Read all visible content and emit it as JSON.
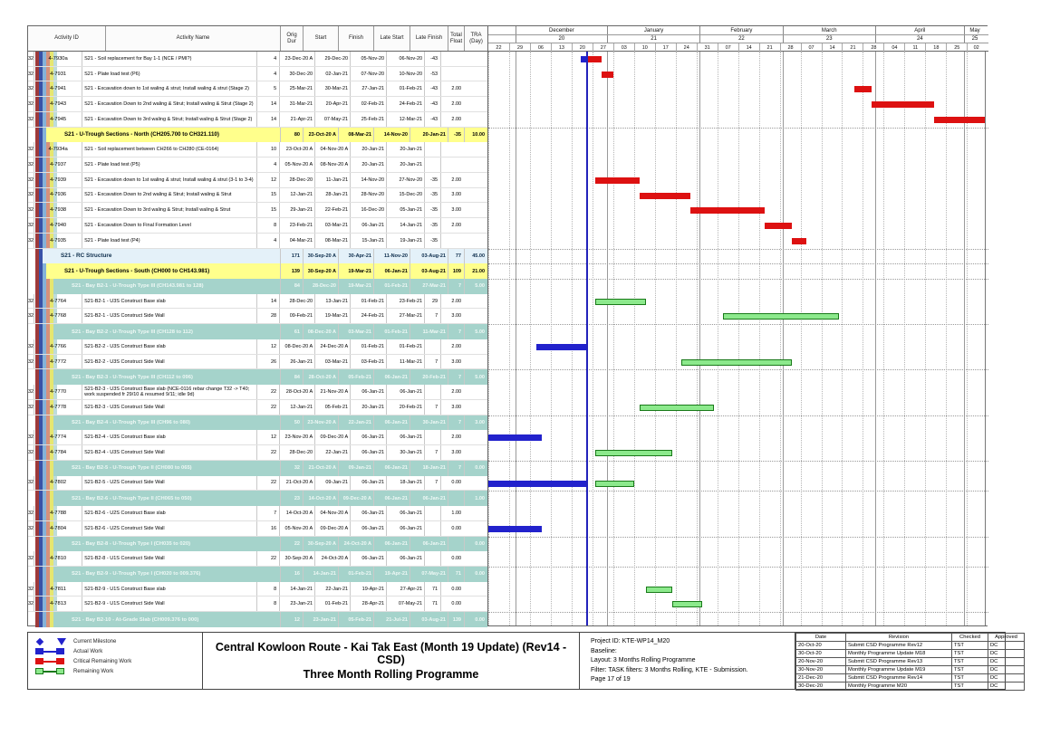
{
  "colors": {
    "actual_bar": "#2222cc",
    "critical_bar": "#dd1111",
    "remaining_fill": "#8ce98c",
    "remaining_border": "#1a7a1a",
    "data_date_line": "#2222bb",
    "yellow_row": "#ffff8c",
    "teal_row": "#a5d3cb",
    "blue_row": "#e4f1f9"
  },
  "header": {
    "columns": [
      "Activity ID",
      "Activity Name",
      "Orig Dur",
      "Start",
      "Finish",
      "Late Start",
      "Late Finish",
      "Total Float",
      "TRA (Day)"
    ]
  },
  "timescale": {
    "chart_start": "2020-11-22",
    "chart_end": "2021-05-08",
    "data_date": "2020-12-25",
    "months": [
      {
        "label": "",
        "num": "",
        "from": "2020-11-22",
        "to": "2020-12-01"
      },
      {
        "label": "December",
        "num": "20",
        "from": "2020-12-01",
        "to": "2021-01-01"
      },
      {
        "label": "January",
        "num": "21",
        "from": "2021-01-01",
        "to": "2021-02-01"
      },
      {
        "label": "February",
        "num": "22",
        "from": "2021-02-01",
        "to": "2021-03-01"
      },
      {
        "label": "March",
        "num": "23",
        "from": "2021-03-01",
        "to": "2021-04-01"
      },
      {
        "label": "April",
        "num": "24",
        "from": "2021-04-01",
        "to": "2021-05-01"
      },
      {
        "label": "May",
        "num": "25",
        "from": "2021-05-01",
        "to": "2021-05-08"
      }
    ],
    "weeks": [
      {
        "label": "22",
        "date": "2020-11-22"
      },
      {
        "label": "29",
        "date": "2020-11-29"
      },
      {
        "label": "06",
        "date": "2020-12-06"
      },
      {
        "label": "13",
        "date": "2020-12-13"
      },
      {
        "label": "20",
        "date": "2020-12-20"
      },
      {
        "label": "27",
        "date": "2020-12-27"
      },
      {
        "label": "03",
        "date": "2021-01-03"
      },
      {
        "label": "10",
        "date": "2021-01-10"
      },
      {
        "label": "17",
        "date": "2021-01-17"
      },
      {
        "label": "24",
        "date": "2021-01-24"
      },
      {
        "label": "31",
        "date": "2021-01-31"
      },
      {
        "label": "07",
        "date": "2021-02-07"
      },
      {
        "label": "14",
        "date": "2021-02-14"
      },
      {
        "label": "21",
        "date": "2021-02-21"
      },
      {
        "label": "28",
        "date": "2021-02-28"
      },
      {
        "label": "07",
        "date": "2021-03-07"
      },
      {
        "label": "14",
        "date": "2021-03-14"
      },
      {
        "label": "21",
        "date": "2021-03-21"
      },
      {
        "label": "28",
        "date": "2021-03-28"
      },
      {
        "label": "04",
        "date": "2021-04-04"
      },
      {
        "label": "11",
        "date": "2021-04-11"
      },
      {
        "label": "18",
        "date": "2021-04-18"
      },
      {
        "label": "25",
        "date": "2021-04-25"
      },
      {
        "label": "02",
        "date": "2021-05-02"
      }
    ]
  },
  "rows": [
    {
      "type": "task",
      "id": "4-7930a",
      "name": "S21 - Soil replacement for Bay 1-1 (NCE / PMI?)",
      "dur": "4",
      "start": "23-Dec-20 A",
      "finish": "29-Dec-20",
      "ls": "05-Nov-20",
      "lf": "06-Nov-20",
      "tf": "-43",
      "tra": "",
      "bars": [
        {
          "t": "actual",
          "f": "2020-12-23",
          "to": "2020-12-25"
        },
        {
          "t": "critical",
          "f": "2020-12-25",
          "to": "2020-12-30"
        }
      ]
    },
    {
      "type": "task",
      "id": "4-7931",
      "name": "S21 - Plate load test (P6)",
      "dur": "4",
      "start": "30-Dec-20",
      "finish": "02-Jan-21",
      "ls": "07-Nov-20",
      "lf": "10-Nov-20",
      "tf": "-53",
      "tra": "",
      "bars": [
        {
          "t": "critical",
          "f": "2020-12-30",
          "to": "2021-01-03"
        }
      ]
    },
    {
      "type": "task",
      "id": "4-7941",
      "name": "S21 - Excavation down to 1st waling & strut; Install waling & strut (Stage 2)",
      "dur": "5",
      "start": "25-Mar-21",
      "finish": "30-Mar-21",
      "ls": "27-Jan-21",
      "lf": "01-Feb-21",
      "tf": "-43",
      "tra": "2.00",
      "bars": [
        {
          "t": "critical",
          "f": "2021-03-25",
          "to": "2021-03-31"
        }
      ]
    },
    {
      "type": "task",
      "id": "4-7943",
      "name": "S21 - Excavation Down to 2nd waling & Strut; Install waling & Strut (Stage 2)",
      "dur": "14",
      "start": "31-Mar-21",
      "finish": "20-Apr-21",
      "ls": "02-Feb-21",
      "lf": "24-Feb-21",
      "tf": "-43",
      "tra": "2.00",
      "bars": [
        {
          "t": "critical",
          "f": "2021-03-31",
          "to": "2021-04-21"
        }
      ]
    },
    {
      "type": "task",
      "id": "4-7945",
      "name": "S21 - Excavation Down to 3rd waling & Strut; Install waling & Strut (Stage 2)",
      "dur": "14",
      "start": "21-Apr-21",
      "finish": "07-May-21",
      "ls": "25-Feb-21",
      "lf": "12-Mar-21",
      "tf": "-43",
      "tra": "2.00",
      "bars": [
        {
          "t": "critical",
          "f": "2021-04-21",
          "to": "2021-05-08"
        }
      ]
    },
    {
      "type": "g-yellow",
      "id": "",
      "name": "S21 - U-Trough Sections - North (CH205.700 to CH321.110)",
      "dur": "80",
      "start": "23-Oct-20 A",
      "finish": "08-Mar-21",
      "ls": "14-Nov-20",
      "lf": "20-Jan-21",
      "tf": "-35",
      "tra": "10.00",
      "bars": []
    },
    {
      "type": "task",
      "id": "4-7934a",
      "name": "S21 - Soil replacement between CH266 to CH280 (CE-0164)",
      "dur": "10",
      "start": "23-Oct-20 A",
      "finish": "04-Nov-20 A",
      "ls": "20-Jan-21",
      "lf": "20-Jan-21",
      "tf": "",
      "tra": "",
      "bars": []
    },
    {
      "type": "task",
      "id": "4-7937",
      "name": "S21 - Plate load test (P5)",
      "dur": "4",
      "start": "05-Nov-20 A",
      "finish": "08-Nov-20 A",
      "ls": "20-Jan-21",
      "lf": "20-Jan-21",
      "tf": "",
      "tra": "",
      "bars": []
    },
    {
      "type": "task",
      "id": "4-7939",
      "name": "S21 - Excavation down to 1st waling & strut; Install waling & strut (3-1 to 3-4)",
      "dur": "12",
      "start": "28-Dec-20",
      "finish": "11-Jan-21",
      "ls": "14-Nov-20",
      "lf": "27-Nov-20",
      "tf": "-35",
      "tra": "2.00",
      "bars": [
        {
          "t": "critical",
          "f": "2020-12-28",
          "to": "2021-01-12"
        }
      ]
    },
    {
      "type": "task",
      "id": "4-7936",
      "name": "S21 - Excavation Down to 2nd waling & Strut; Install waling & Strut",
      "dur": "15",
      "start": "12-Jan-21",
      "finish": "28-Jan-21",
      "ls": "28-Nov-20",
      "lf": "15-Dec-20",
      "tf": "-35",
      "tra": "3.00",
      "bars": [
        {
          "t": "critical",
          "f": "2021-01-12",
          "to": "2021-01-29"
        }
      ]
    },
    {
      "type": "task",
      "id": "4-7938",
      "name": "S21 - Excavation Down to 3rd waling & Strut; Install waling & Strut",
      "dur": "15",
      "start": "29-Jan-21",
      "finish": "22-Feb-21",
      "ls": "16-Dec-20",
      "lf": "05-Jan-21",
      "tf": "-35",
      "tra": "3.00",
      "bars": [
        {
          "t": "critical",
          "f": "2021-01-29",
          "to": "2021-02-23"
        }
      ]
    },
    {
      "type": "task",
      "id": "4-7940",
      "name": "S21 - Excavation Down to Final Formation Level",
      "dur": "8",
      "start": "23-Feb-21",
      "finish": "03-Mar-21",
      "ls": "06-Jan-21",
      "lf": "14-Jan-21",
      "tf": "-35",
      "tra": "2.00",
      "bars": [
        {
          "t": "critical",
          "f": "2021-02-23",
          "to": "2021-03-04"
        }
      ]
    },
    {
      "type": "task",
      "id": "4-7935",
      "name": "S21 - Plate load test (P4)",
      "dur": "4",
      "start": "04-Mar-21",
      "finish": "08-Mar-21",
      "ls": "15-Jan-21",
      "lf": "19-Jan-21",
      "tf": "-35",
      "tra": "",
      "bars": [
        {
          "t": "critical",
          "f": "2021-03-04",
          "to": "2021-03-09"
        }
      ]
    },
    {
      "type": "g-blue",
      "id": "",
      "name": "S21 - RC Structure",
      "dur": "171",
      "start": "30-Sep-20 A",
      "finish": "30-Apr-21",
      "ls": "11-Nov-20",
      "lf": "03-Aug-21",
      "tf": "77",
      "tra": "45.00",
      "bars": []
    },
    {
      "type": "g-yellow",
      "id": "",
      "name": "S21 - U-Trough Sections - South (CH000 to CH143.981)",
      "dur": "139",
      "start": "30-Sep-20 A",
      "finish": "19-Mar-21",
      "ls": "06-Jan-21",
      "lf": "03-Aug-21",
      "tf": "109",
      "tra": "21.00",
      "bars": []
    },
    {
      "type": "g-teal",
      "id": "",
      "name": "S21 - Bay B2-1 - U-Trough Type III (CH143.981 to 128)",
      "dur": "84",
      "start": "28-Dec-20",
      "finish": "19-Mar-21",
      "ls": "01-Feb-21",
      "lf": "27-Mar-21",
      "tf": "7",
      "tra": "5.00",
      "bars": []
    },
    {
      "type": "task",
      "id": "4-7764",
      "name": "S21-B2-1 - U3S Construct Base slab",
      "dur": "14",
      "start": "28-Dec-20",
      "finish": "13-Jan-21",
      "ls": "01-Feb-21",
      "lf": "23-Feb-21",
      "tf": "29",
      "tra": "2.00",
      "bars": [
        {
          "t": "remaining",
          "f": "2020-12-28",
          "to": "2021-01-14"
        }
      ]
    },
    {
      "type": "task",
      "id": "4-7768",
      "name": "S21-B2-1 - U3S Construct Side Wall",
      "dur": "28",
      "start": "09-Feb-21",
      "finish": "19-Mar-21",
      "ls": "24-Feb-21",
      "lf": "27-Mar-21",
      "tf": "7",
      "tra": "3.00",
      "bars": [
        {
          "t": "remaining",
          "f": "2021-02-09",
          "to": "2021-03-20"
        }
      ]
    },
    {
      "type": "g-teal",
      "id": "",
      "name": "S21 - Bay B2-2 - U-Trough  Type III (CH128 to 112)",
      "dur": "61",
      "start": "08-Dec-20 A",
      "finish": "03-Mar-21",
      "ls": "01-Feb-21",
      "lf": "11-Mar-21",
      "tf": "7",
      "tra": "5.00",
      "bars": []
    },
    {
      "type": "task",
      "id": "4-7766",
      "name": "S21-B2-2 - U3S Construct Base slab",
      "dur": "12",
      "start": "08-Dec-20 A",
      "finish": "24-Dec-20 A",
      "ls": "01-Feb-21",
      "lf": "01-Feb-21",
      "tf": "",
      "tra": "2.00",
      "bars": [
        {
          "t": "actual",
          "f": "2020-12-08",
          "to": "2020-12-25"
        }
      ]
    },
    {
      "type": "task",
      "id": "4-7772",
      "name": "S21-B2-2 - U3S Construct Side Wall",
      "dur": "26",
      "start": "26-Jan-21",
      "finish": "03-Mar-21",
      "ls": "03-Feb-21",
      "lf": "11-Mar-21",
      "tf": "7",
      "tra": "3.00",
      "bars": [
        {
          "t": "remaining",
          "f": "2021-01-26",
          "to": "2021-03-04"
        }
      ]
    },
    {
      "type": "g-teal",
      "id": "",
      "name": "S21 - Bay B2-3 - U-Trough  Type III (CH112 to 096)",
      "dur": "84",
      "start": "28-Oct-20 A",
      "finish": "05-Feb-21",
      "ls": "06-Jan-21",
      "lf": "20-Feb-21",
      "tf": "7",
      "tra": "5.00",
      "bars": []
    },
    {
      "type": "task",
      "id": "4-7770",
      "name": "S21-B2-3 - U3S Construct Base slab (NCE-0116 rebar change T32 -> T40; work suspended fr 29/10 & resumed 9/11; idle 9d)",
      "dur": "22",
      "start": "28-Oct-20 A",
      "finish": "21-Nov-20 A",
      "ls": "06-Jan-21",
      "lf": "06-Jan-21",
      "tf": "",
      "tra": "2.00",
      "bars": []
    },
    {
      "type": "task",
      "id": "4-7778",
      "name": "S21-B2-3 - U3S Construct Side Wall",
      "dur": "22",
      "start": "12-Jan-21",
      "finish": "05-Feb-21",
      "ls": "20-Jan-21",
      "lf": "20-Feb-21",
      "tf": "7",
      "tra": "3.00",
      "bars": [
        {
          "t": "remaining",
          "f": "2021-01-12",
          "to": "2021-02-06"
        }
      ]
    },
    {
      "type": "g-teal",
      "id": "",
      "name": "S21 - Bay B2-4 - U-Trough  Type III (CH96 to 080)",
      "dur": "50",
      "start": "23-Nov-20 A",
      "finish": "22-Jan-21",
      "ls": "06-Jan-21",
      "lf": "30-Jan-21",
      "tf": "7",
      "tra": "3.00",
      "bars": []
    },
    {
      "type": "task",
      "id": "4-7774",
      "name": "S21-B2-4 - U3S Construct Base slab",
      "dur": "12",
      "start": "23-Nov-20 A",
      "finish": "09-Dec-20 A",
      "ls": "06-Jan-21",
      "lf": "06-Jan-21",
      "tf": "",
      "tra": "2.00",
      "bars": [
        {
          "t": "actual",
          "f": "2020-11-22",
          "to": "2020-12-10"
        }
      ]
    },
    {
      "type": "task",
      "id": "4-7784",
      "name": "S21-B2-4 - U3S Construct Side Wall",
      "dur": "22",
      "start": "28-Dec-20",
      "finish": "22-Jan-21",
      "ls": "06-Jan-21",
      "lf": "30-Jan-21",
      "tf": "7",
      "tra": "3.00",
      "bars": [
        {
          "t": "remaining",
          "f": "2020-12-28",
          "to": "2021-01-23"
        }
      ]
    },
    {
      "type": "g-teal",
      "id": "",
      "name": "S21 - Bay B2-5 - U-Trough  Type II (CH080 to 065)",
      "dur": "32",
      "start": "21-Oct-20 A",
      "finish": "09-Jan-21",
      "ls": "06-Jan-21",
      "lf": "18-Jan-21",
      "tf": "7",
      "tra": "0.00",
      "bars": []
    },
    {
      "type": "task",
      "id": "4-7802",
      "name": "S21-B2-5 - U2S Construct Side Wall",
      "dur": "22",
      "start": "21-Oct-20 A",
      "finish": "09-Jan-21",
      "ls": "06-Jan-21",
      "lf": "18-Jan-21",
      "tf": "7",
      "tra": "0.00",
      "bars": [
        {
          "t": "actual",
          "f": "2020-11-22",
          "to": "2020-12-25"
        },
        {
          "t": "remaining",
          "f": "2020-12-28",
          "to": "2021-01-10"
        }
      ]
    },
    {
      "type": "g-teal",
      "id": "",
      "name": "S21 - Bay B2-6 - U-Trough  Type II (CH065 to 050)",
      "dur": "23",
      "start": "14-Oct-20 A",
      "finish": "09-Dec-20 A",
      "ls": "06-Jan-21",
      "lf": "06-Jan-21",
      "tf": "",
      "tra": "1.00",
      "bars": []
    },
    {
      "type": "task",
      "id": "4-7788",
      "name": "S21-B2-6 - U2S Construct Base slab",
      "dur": "7",
      "start": "14-Oct-20 A",
      "finish": "04-Nov-20 A",
      "ls": "06-Jan-21",
      "lf": "06-Jan-21",
      "tf": "",
      "tra": "1.00",
      "bars": []
    },
    {
      "type": "task",
      "id": "4-7804",
      "name": "S21-B2-6 - U2S Construct Side Wall",
      "dur": "16",
      "start": "05-Nov-20 A",
      "finish": "09-Dec-20 A",
      "ls": "06-Jan-21",
      "lf": "06-Jan-21",
      "tf": "",
      "tra": "0.00",
      "bars": [
        {
          "t": "actual",
          "f": "2020-11-22",
          "to": "2020-12-10"
        }
      ]
    },
    {
      "type": "g-teal",
      "id": "",
      "name": "S21 - Bay B2-8 - U-Trough  Type I (CH035 to 020)",
      "dur": "22",
      "start": "30-Sep-20 A",
      "finish": "24-Oct-20 A",
      "ls": "06-Jan-21",
      "lf": "06-Jan-21",
      "tf": "",
      "tra": "0.00",
      "bars": []
    },
    {
      "type": "task",
      "id": "4-7810",
      "name": "S21-B2-8 - U1S Construct Side Wall",
      "dur": "22",
      "start": "30-Sep-20 A",
      "finish": "24-Oct-20 A",
      "ls": "06-Jan-21",
      "lf": "06-Jan-21",
      "tf": "",
      "tra": "0.00",
      "bars": []
    },
    {
      "type": "g-teal",
      "id": "",
      "name": "S21 - Bay B2-9 - U-Trough  Type I (CH020 to 009.376)",
      "dur": "16",
      "start": "14-Jan-21",
      "finish": "01-Feb-21",
      "ls": "19-Apr-21",
      "lf": "07-May-21",
      "tf": "71",
      "tra": "0.00",
      "bars": []
    },
    {
      "type": "task",
      "id": "4-7811",
      "name": "S21-B2-9 - U1S Construct Base slab",
      "dur": "8",
      "start": "14-Jan-21",
      "finish": "22-Jan-21",
      "ls": "19-Apr-21",
      "lf": "27-Apr-21",
      "tf": "71",
      "tra": "0.00",
      "bars": [
        {
          "t": "remaining",
          "f": "2021-01-14",
          "to": "2021-01-23"
        }
      ]
    },
    {
      "type": "task",
      "id": "4-7813",
      "name": "S21-B2-9 - U1S Construct Side Wall",
      "dur": "8",
      "start": "23-Jan-21",
      "finish": "01-Feb-21",
      "ls": "28-Apr-21",
      "lf": "07-May-21",
      "tf": "71",
      "tra": "0.00",
      "bars": [
        {
          "t": "remaining",
          "f": "2021-01-23",
          "to": "2021-02-02"
        }
      ]
    },
    {
      "type": "g-teal",
      "id": "",
      "name": "S21 -  Bay B2-10 - At-Grade Slab (CH009.376 to 000)",
      "dur": "12",
      "start": "23-Jan-21",
      "finish": "05-Feb-21",
      "ls": "21-Jul-21",
      "lf": "03-Aug-21",
      "tf": "139",
      "tra": "0.00",
      "bars": []
    }
  ],
  "legend": {
    "items": [
      {
        "type": "milestone",
        "label": "Current Milestone"
      },
      {
        "type": "actual",
        "label": "Actual Work"
      },
      {
        "type": "critical",
        "label": "Critical Remaining Work"
      },
      {
        "type": "remaining",
        "label": "Remaining Work"
      }
    ]
  },
  "title": {
    "line1": "Central Kowloon Route - Kai Tak East (Month 19 Update) (Rev14 - CSD)",
    "line2": "Three Month Rolling Programme"
  },
  "info": {
    "lines": [
      "Project ID: KTE-WP14_M20",
      "Baseline:",
      "Layout: 3 Months Rolling Programme",
      "Filter: TASK filters: 3 Months Rolling, KTE - Submission."
    ],
    "page": "Page 17 of 19"
  },
  "revisions": {
    "columns": [
      "Date",
      "Revision",
      "Checked",
      "Approved"
    ],
    "rows": [
      [
        "20-Oct-20",
        "Submit CSD Programme Rev12",
        "TST",
        "DC"
      ],
      [
        "30-Oct-20",
        "Monthly Programme Update M18",
        "TST",
        "DC"
      ],
      [
        "20-Nov-20",
        "Submit CSD Programme Rev13",
        "TST",
        "DC"
      ],
      [
        "30-Nov-20",
        "Monthly Programme Update M19",
        "TST",
        "DC"
      ],
      [
        "21-Dec-20",
        "Submit CSD Programme Rev14",
        "TST",
        "DC"
      ],
      [
        "30-Dec-20",
        "Monthly Programme M20",
        "TST",
        "DC"
      ]
    ]
  }
}
